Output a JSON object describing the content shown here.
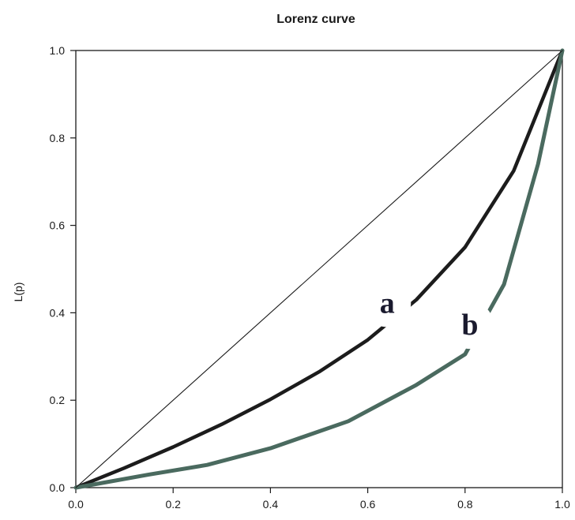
{
  "chart_data": {
    "type": "line",
    "title": "Lorenz curve",
    "xlabel": "",
    "ylabel": "L(p)",
    "xlim": [
      0,
      1
    ],
    "ylim": [
      0,
      1
    ],
    "x_ticks": [
      "0.0",
      "0.2",
      "0.4",
      "0.6",
      "0.8",
      "1.0"
    ],
    "y_ticks": [
      "0.0",
      "0.2",
      "0.4",
      "0.6",
      "0.8",
      "1.0"
    ],
    "grid": false,
    "legend": "none",
    "series": [
      {
        "label": "a",
        "color": "#1c1c1c",
        "points": [
          [
            0,
            0
          ],
          [
            0.1,
            0.045
          ],
          [
            0.2,
            0.093
          ],
          [
            0.3,
            0.145
          ],
          [
            0.4,
            0.202
          ],
          [
            0.5,
            0.265
          ],
          [
            0.6,
            0.338
          ],
          [
            0.7,
            0.43
          ],
          [
            0.8,
            0.55
          ],
          [
            0.9,
            0.725
          ],
          [
            1.0,
            1.0
          ]
        ]
      },
      {
        "label": "b",
        "color": "#4a6a5f",
        "points": [
          [
            0,
            0
          ],
          [
            0.05,
            0.01
          ],
          [
            0.15,
            0.03
          ],
          [
            0.27,
            0.052
          ],
          [
            0.4,
            0.09
          ],
          [
            0.56,
            0.152
          ],
          [
            0.7,
            0.235
          ],
          [
            0.8,
            0.305
          ],
          [
            0.88,
            0.465
          ],
          [
            0.95,
            0.74
          ],
          [
            1.0,
            1.0
          ]
        ]
      },
      {
        "label": "",
        "color": "#1a1a1a",
        "points": [
          [
            0,
            0
          ],
          [
            1,
            1
          ]
        ]
      }
    ],
    "annotations": [
      {
        "text": "a",
        "x": 0.64,
        "y": 0.4
      },
      {
        "text": "b",
        "x": 0.81,
        "y": 0.35
      }
    ]
  }
}
